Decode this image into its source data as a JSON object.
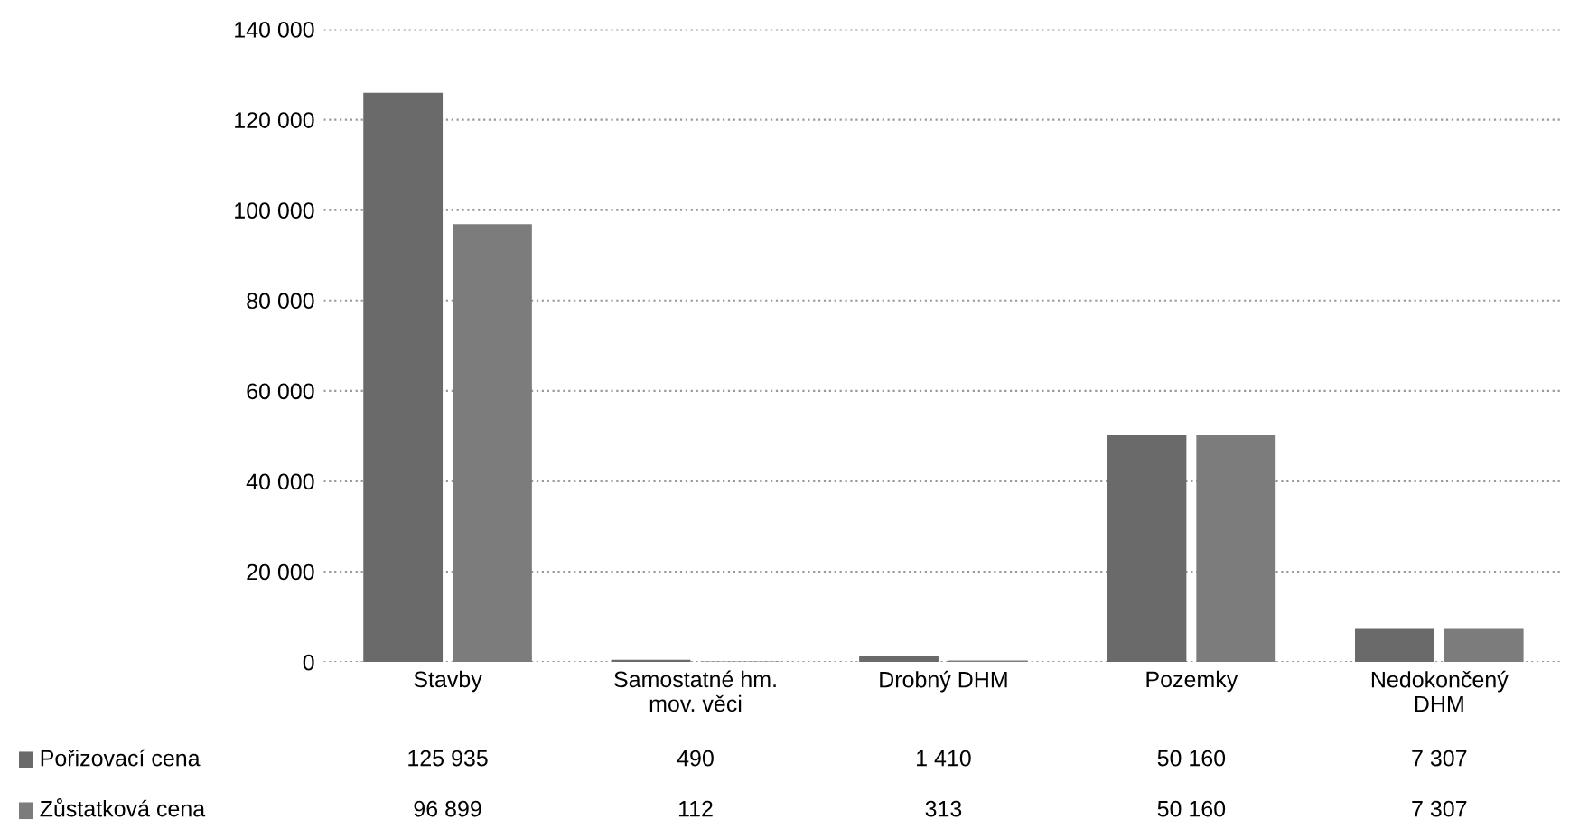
{
  "chart_data": {
    "type": "bar",
    "categories": [
      "Stavby",
      "Samostatné hm.\nmov. věci",
      "Drobný DHM",
      "Pozemky",
      "Nedokončený\nDHM"
    ],
    "series": [
      {
        "name": "Pořizovací cena",
        "color": "#6a6a6a",
        "values": [
          125935,
          490,
          1410,
          50160,
          7307
        ],
        "value_labels": [
          "125 935",
          "490",
          "1 410",
          "50 160",
          "7 307"
        ]
      },
      {
        "name": "Zůstatková cena",
        "color": "#7c7c7c",
        "values": [
          96899,
          112,
          313,
          50160,
          7307
        ],
        "value_labels": [
          "96 899",
          "112",
          "313",
          "50 160",
          "7 307"
        ]
      }
    ],
    "ylim": [
      0,
      140000
    ],
    "yticks": [
      {
        "value": 0,
        "label": "0"
      },
      {
        "value": 20000,
        "label": "20 000"
      },
      {
        "value": 40000,
        "label": "40 000"
      },
      {
        "value": 60000,
        "label": "60 000"
      },
      {
        "value": 80000,
        "label": "80 000"
      },
      {
        "value": 100000,
        "label": "100 000"
      },
      {
        "value": 120000,
        "label": "120 000"
      },
      {
        "value": 140000,
        "label": "140 000"
      }
    ],
    "grid": "y",
    "legend": "bottom left"
  }
}
